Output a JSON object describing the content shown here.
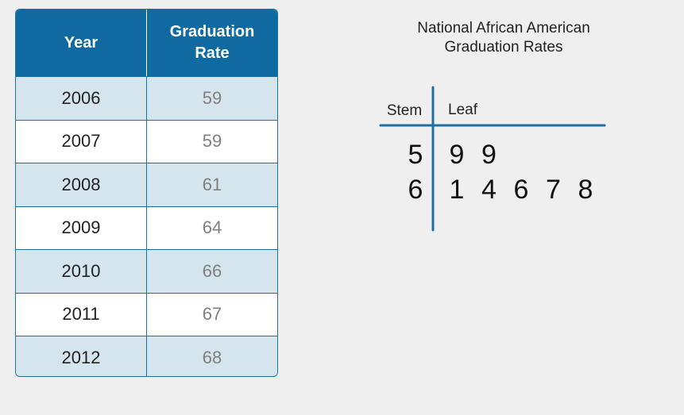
{
  "table": {
    "headers": {
      "year": "Year",
      "rate": "Graduation\nRate"
    },
    "rows": [
      {
        "year": "2006",
        "rate": "59"
      },
      {
        "year": "2007",
        "rate": "59"
      },
      {
        "year": "2008",
        "rate": "61"
      },
      {
        "year": "2009",
        "rate": "64"
      },
      {
        "year": "2010",
        "rate": "66"
      },
      {
        "year": "2011",
        "rate": "67"
      },
      {
        "year": "2012",
        "rate": "68"
      }
    ]
  },
  "chart_data": {
    "type": "table",
    "title": "National African American\nGraduation Rates",
    "stem_header": "Stem",
    "leaf_header": "Leaf",
    "rows": [
      {
        "stem": "5",
        "leaves": [
          "9",
          "9"
        ]
      },
      {
        "stem": "6",
        "leaves": [
          "1",
          "4",
          "6",
          "7",
          "8"
        ]
      }
    ]
  },
  "colors": {
    "header_bg": "#0f6aa1",
    "stripe": "#d5e5ee",
    "axis": "#1f6fa3"
  }
}
